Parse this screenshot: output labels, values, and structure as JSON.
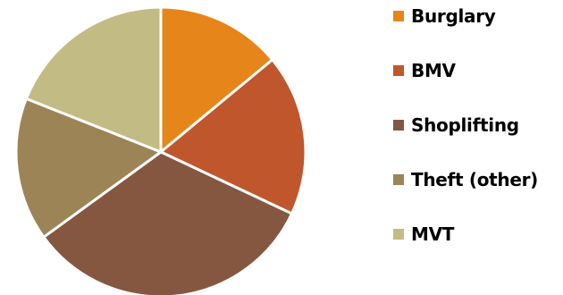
{
  "chart_data": {
    "type": "pie",
    "title": "",
    "categories": [
      "Burglary",
      "BMV",
      "Shoplifting",
      "Theft (other)",
      "MVT"
    ],
    "values": [
      14,
      18,
      33,
      16,
      19
    ],
    "colors": [
      "#E6861A",
      "#C0562C",
      "#855741",
      "#9C8457",
      "#C3BB84"
    ],
    "start_angle_deg": 0,
    "direction": "clockwise",
    "legend": "right",
    "slice_border_color": "#ffffff"
  }
}
